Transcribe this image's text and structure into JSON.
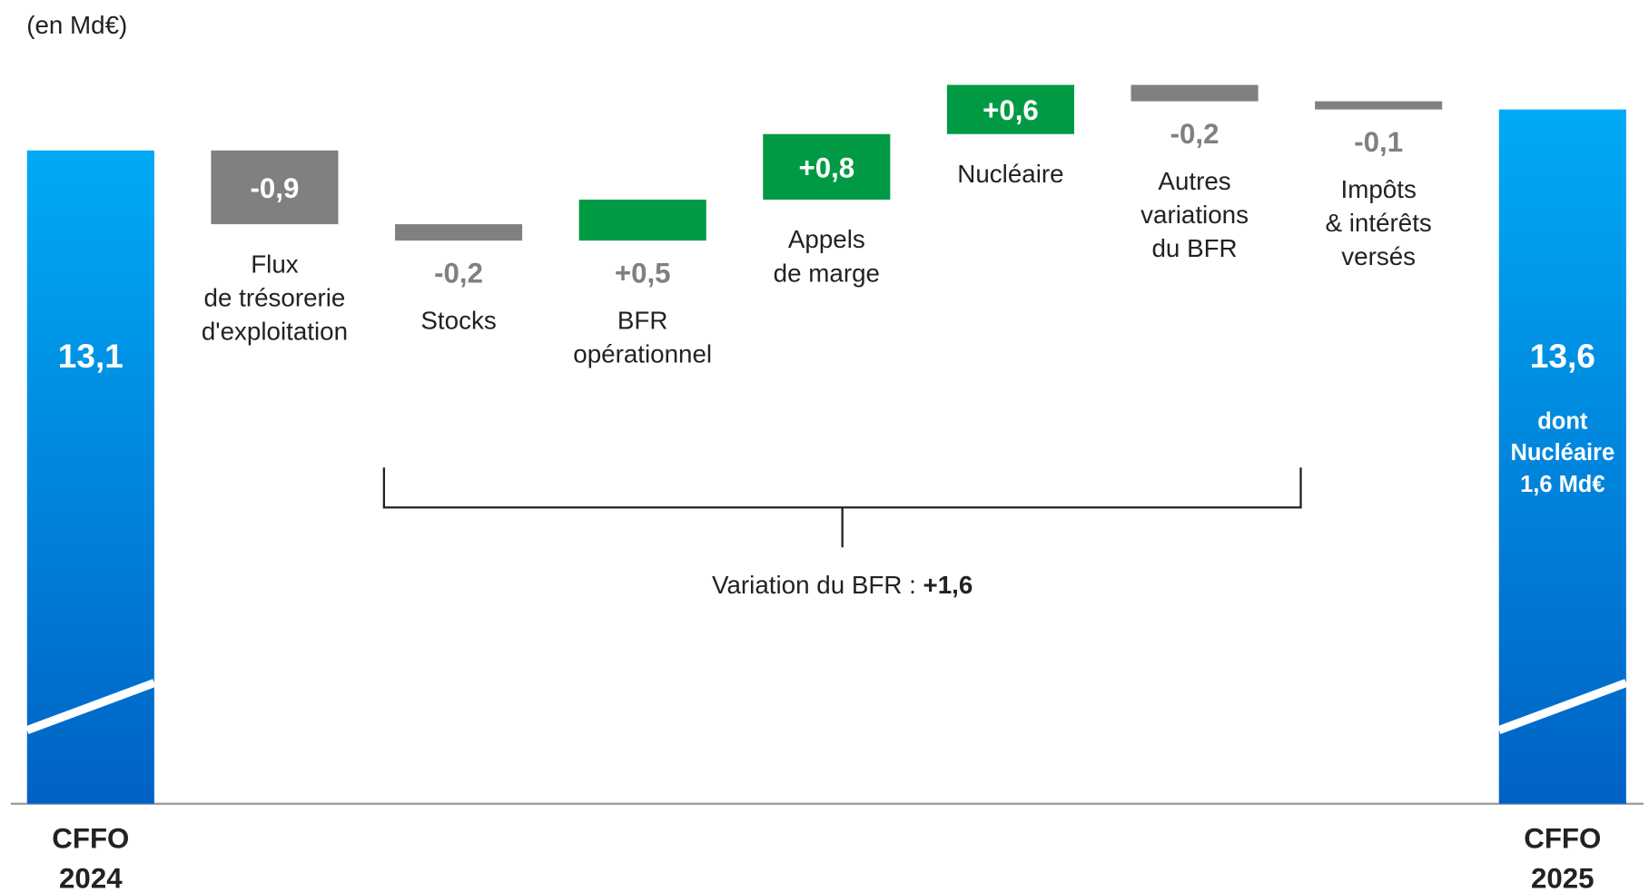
{
  "chart_data": {
    "type": "waterfall",
    "subtitle": "(en Md€)",
    "categories": [
      "CFFO\n2024",
      "Flux\nde trésorerie\nd'exploitation",
      "Stocks",
      "BFR\nopérationnel",
      "Appels\nde marge",
      "Nucléaire",
      "Autres\nvariations\ndu BFR",
      "Impôts\n& intérêts\nversés",
      "CFFO\n2025"
    ],
    "measure": [
      "total",
      "relative",
      "relative",
      "relative",
      "relative",
      "relative",
      "relative",
      "relative",
      "total"
    ],
    "values": [
      13.1,
      -0.9,
      -0.2,
      0.5,
      0.8,
      0.6,
      -0.2,
      -0.1,
      13.6
    ],
    "value_labels": [
      "13,1",
      "-0,9",
      "-0,2",
      "+0,5",
      "+0,8",
      "+0,6",
      "-0,2",
      "-0,1",
      "13,6"
    ],
    "colors": {
      "increase": "#009a44",
      "decrease": "#808080",
      "total": [
        "#00aaf5",
        "#0062c4"
      ]
    },
    "ylim": [
      5,
      15
    ],
    "total_note": "dont\nNucléaire\n1,6 Md€",
    "annotation": {
      "text": "Variation du BFR :",
      "value_label": "+1,6"
    }
  }
}
